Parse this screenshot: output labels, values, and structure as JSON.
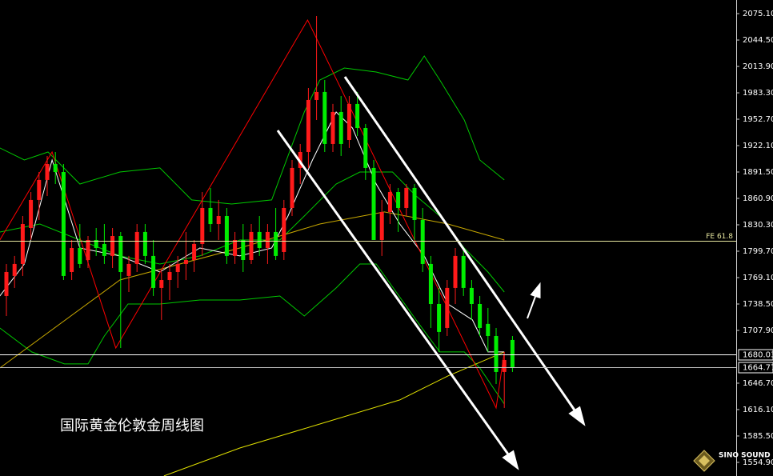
{
  "chart_data": {
    "type": "candlestick",
    "caption": "国际黄金伦敦金周线图",
    "logo": "SINO SOUND",
    "ylim": [
      1539.1,
      2090.9
    ],
    "yticks": [
      {
        "value": 2075.1,
        "label": "2075.10"
      },
      {
        "value": 2044.5,
        "label": "2044.50"
      },
      {
        "value": 2013.9,
        "label": "2013.90"
      },
      {
        "value": 1983.3,
        "label": "1983.30"
      },
      {
        "value": 1952.7,
        "label": "1952.70"
      },
      {
        "value": 1922.1,
        "label": "1922.10"
      },
      {
        "value": 1891.5,
        "label": "1891.50"
      },
      {
        "value": 1860.9,
        "label": "1860.90"
      },
      {
        "value": 1830.3,
        "label": "1830.30"
      },
      {
        "value": 1799.7,
        "label": "1799.70"
      },
      {
        "value": 1769.1,
        "label": "1769.10"
      },
      {
        "value": 1738.5,
        "label": "1738.50"
      },
      {
        "value": 1707.9,
        "label": "1707.90"
      },
      {
        "value": 1646.7,
        "label": "1646.70"
      },
      {
        "value": 1616.1,
        "label": "1616.10"
      },
      {
        "value": 1585.5,
        "label": "1585.50"
      },
      {
        "value": 1554.9,
        "label": "1554.90"
      }
    ],
    "up_color": "#ff1a1a",
    "down_color": "#00ee00",
    "candles": {
      "open": [
        1747.8,
        1771.0,
        1784.9,
        1826.6,
        1859.1,
        1882.3,
        1900.8,
        1891.5,
        1775.6,
        1803.4,
        1789.5,
        1812.7,
        1808.1,
        1794.2,
        1817.3,
        1771.0,
        1784.9,
        1822.0,
        1794.2,
        1757.1,
        1766.3,
        1775.6,
        1784.9,
        1789.5,
        1808.1,
        1849.8,
        1831.2,
        1840.5,
        1794.2,
        1812.7,
        1789.5,
        1822.0,
        1803.4,
        1822.0,
        1798.8,
        1849.8,
        1896.2,
        1914.7,
        1975.0,
        1984.3,
        1924.0,
        1961.1,
        1928.6,
        1970.4,
        1942.5,
        1896.2,
        1812.7,
        1845.2,
        1868.3,
        1849.8,
        1873.0,
        1835.9,
        1784.9,
        1738.5,
        1710.7,
        1757.1,
        1794.2,
        1757.1,
        1738.5,
        1715.4,
        1701.4,
        1659.7,
        1696.8
      ],
      "high": [
        1784.9,
        1794.2,
        1840.5,
        1868.3,
        1891.5,
        1910.1,
        1914.7,
        1900.8,
        1812.7,
        1831.2,
        1817.3,
        1826.6,
        1831.2,
        1826.6,
        1822.0,
        1794.2,
        1831.2,
        1831.2,
        1812.7,
        1775.6,
        1784.9,
        1794.2,
        1822.0,
        1812.7,
        1868.3,
        1873.0,
        1859.1,
        1849.8,
        1822.0,
        1831.2,
        1831.2,
        1840.5,
        1831.2,
        1849.8,
        1859.1,
        1905.4,
        1924.0,
        1988.9,
        2072.4,
        1998.2,
        1970.4,
        1979.6,
        1979.6,
        1984.3,
        1947.2,
        1905.4,
        1859.1,
        1877.6,
        1873.0,
        1877.6,
        1877.6,
        1849.8,
        1794.2,
        1757.1,
        1766.3,
        1803.4,
        1803.4,
        1766.3,
        1747.8,
        1733.9,
        1710.7,
        1682.9,
        1701.4
      ],
      "low": [
        1724.6,
        1757.1,
        1771.0,
        1812.7,
        1835.9,
        1863.7,
        1877.6,
        1766.3,
        1766.3,
        1780.2,
        1780.2,
        1794.2,
        1784.9,
        1780.2,
        1687.5,
        1752.4,
        1775.6,
        1784.9,
        1747.8,
        1720.0,
        1743.1,
        1757.1,
        1766.3,
        1775.6,
        1794.2,
        1822.0,
        1812.7,
        1784.9,
        1784.9,
        1775.6,
        1784.9,
        1794.2,
        1784.9,
        1789.5,
        1789.5,
        1840.5,
        1877.6,
        1896.2,
        1951.8,
        1914.7,
        1914.7,
        1910.1,
        1919.4,
        1933.2,
        1882.3,
        1812.7,
        1794.2,
        1831.2,
        1822.0,
        1840.5,
        1812.7,
        1775.6,
        1710.7,
        1682.9,
        1701.4,
        1738.5,
        1747.8,
        1720.0,
        1701.4,
        1682.9,
        1645.8,
        1618.0,
        1659.7
      ],
      "close": [
        1775.6,
        1784.9,
        1831.2,
        1859.1,
        1882.3,
        1900.8,
        1891.5,
        1771.0,
        1803.4,
        1784.9,
        1812.7,
        1803.4,
        1794.2,
        1817.3,
        1775.6,
        1784.9,
        1822.0,
        1794.2,
        1757.1,
        1766.3,
        1775.6,
        1784.9,
        1789.5,
        1808.1,
        1849.8,
        1831.2,
        1840.5,
        1794.2,
        1812.7,
        1789.5,
        1822.0,
        1803.4,
        1822.0,
        1794.2,
        1849.8,
        1896.2,
        1914.7,
        1975.0,
        1984.3,
        1924.0,
        1961.1,
        1924.0,
        1970.4,
        1942.5,
        1896.2,
        1812.7,
        1845.2,
        1868.3,
        1849.8,
        1873.0,
        1835.9,
        1784.9,
        1738.5,
        1706.1,
        1757.1,
        1794.2,
        1757.1,
        1738.5,
        1710.7,
        1701.4,
        1659.7,
        1673.6,
        1664.3
      ]
    },
    "overlays": [
      {
        "color": "#00c800",
        "x": [
          -0.8,
          2.2,
          5.1,
          9.0,
          13.9,
          18.8,
          22.7,
          27.6,
          32.5,
          36.5,
          38.4,
          41.4,
          45.3,
          49.2,
          51.2,
          53.1,
          56.1,
          58.0,
          61.0
        ],
        "values": [
          1919.4,
          1905.4,
          1914.7,
          1877.6,
          1891.5,
          1896.2,
          1859.1,
          1854.4,
          1859.1,
          1961.1,
          1998.2,
          2012.1,
          2007.4,
          1998.2,
          2026.0,
          1998.2,
          1951.8,
          1905.4,
          1882.3
        ]
      },
      {
        "color": "#00c800",
        "x": [
          -0.8,
          4.1,
          9.0,
          13.9,
          18.8,
          23.7,
          28.6,
          33.5,
          36.5,
          40.4,
          43.3,
          47.3,
          50.2,
          53.1,
          56.1,
          59.0,
          61.0
        ],
        "values": [
          1822.0,
          1831.2,
          1812.7,
          1794.2,
          1784.9,
          1794.2,
          1812.7,
          1812.7,
          1840.5,
          1877.6,
          1891.5,
          1891.5,
          1863.7,
          1840.5,
          1803.4,
          1775.6,
          1752.4
        ]
      },
      {
        "color": "#00c800",
        "x": [
          -0.8,
          3.1,
          7.1,
          10.0,
          12.0,
          14.9,
          18.8,
          23.7,
          28.6,
          33.5,
          36.5,
          40.4,
          43.3,
          45.3,
          50.2,
          53.1,
          56.1,
          58.0,
          61.0
        ],
        "values": [
          1710.7,
          1682.9,
          1669.0,
          1669.0,
          1701.4,
          1738.5,
          1738.5,
          1743.1,
          1743.1,
          1747.8,
          1724.6,
          1757.1,
          1784.9,
          1784.9,
          1720.0,
          1682.9,
          1682.9,
          1664.3,
          1622.6
        ]
      },
      {
        "color": "#c8a800",
        "x": [
          -0.8,
          13.9,
          28.6,
          38.4,
          46.3,
          54.1,
          61.0
        ],
        "values": [
          1664.3,
          1766.3,
          1803.4,
          1831.2,
          1845.2,
          1831.2,
          1812.7
        ]
      },
      {
        "color": "#e0e000",
        "x": [
          19.3,
          28.6,
          38.4,
          48.2,
          54.1,
          61.0
        ],
        "values": [
          1539.2,
          1571.6,
          1599.4,
          1627.3,
          1655.1,
          1682.9
        ]
      },
      {
        "color": "#ffffff",
        "x": [
          -0.8,
          2.2,
          5.6,
          9.0,
          13.9,
          18.8,
          23.7,
          28.6,
          32.5,
          34.5,
          37.5,
          40.4,
          42.4,
          45.3,
          48.2,
          51.2,
          54.1,
          57.1,
          59.0,
          61.0
        ],
        "values": [
          1747.8,
          1784.9,
          1905.4,
          1803.4,
          1794.2,
          1775.6,
          1803.4,
          1794.2,
          1803.4,
          1840.5,
          1905.4,
          1961.1,
          1942.5,
          1877.6,
          1831.2,
          1794.2,
          1738.5,
          1720.0,
          1682.9,
          1682.9
        ]
      },
      {
        "color": "#ff0000",
        "x": [
          -0.8,
          5.6,
          13.4,
          36.9,
          60.0,
          61.0
        ],
        "values": [
          1812.7,
          1914.7,
          1687.5,
          2067.7,
          1618.0,
          1682.9
        ]
      }
    ],
    "levels": [
      {
        "value": 1811.7,
        "label": "FE 61.8",
        "color": "#e8e8a0"
      },
      {
        "value": 1680.03,
        "color": "#ffffff",
        "boxed": true
      },
      {
        "value": 1664.77,
        "color": "#c0c0c0",
        "boxed": true
      }
    ]
  }
}
